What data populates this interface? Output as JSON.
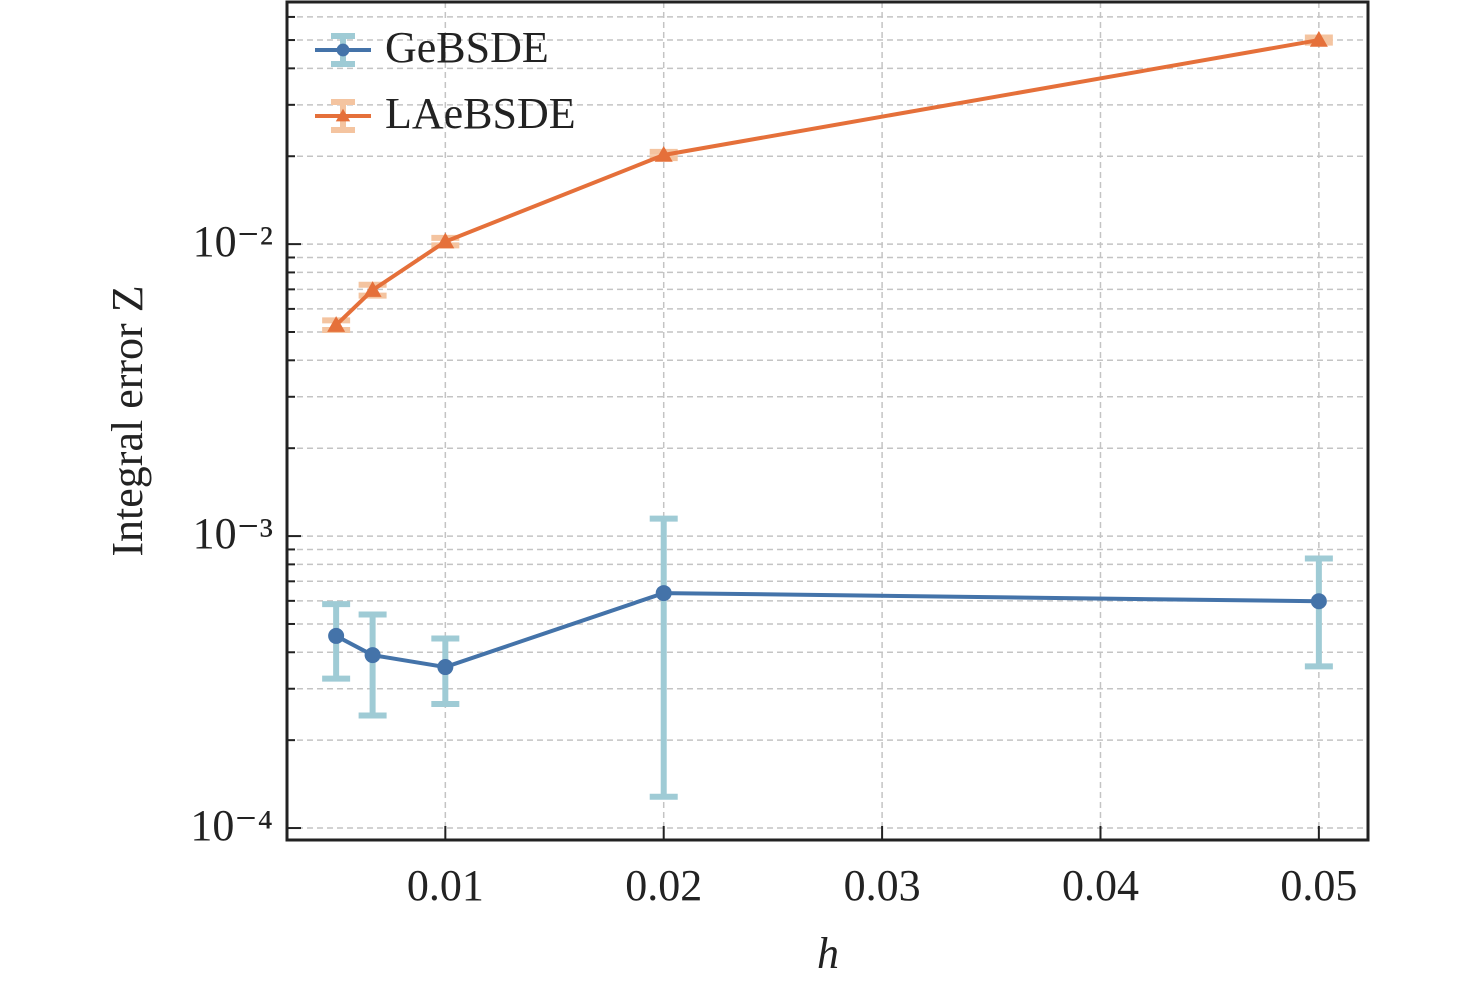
{
  "chart_data": {
    "type": "line",
    "xlabel": "h",
    "ylabel": "Integral error Z",
    "x": [
      0.005,
      0.00667,
      0.01,
      0.02,
      0.05
    ],
    "series": [
      {
        "name": "GeBSDE",
        "color": "#4473a9",
        "error_color": "#9fcbd5",
        "marker": "circle",
        "values": [
          0.000455,
          0.000391,
          0.000356,
          0.000638,
          0.000598
        ],
        "errors": [
          0.00013,
          0.000148,
          9e-05,
          0.00051,
          0.00024
        ]
      },
      {
        "name": "LAeBSDE",
        "color": "#e5703a",
        "error_color": "#f4c4a0",
        "marker": "triangle",
        "values": [
          0.00528,
          0.00696,
          0.0102,
          0.0202,
          0.05
        ],
        "errors": [
          0.0002,
          0.0003,
          0.0003,
          0.0005,
          0.001
        ]
      }
    ],
    "xlim": [
      0.00275,
      0.05225
    ],
    "xticks": [
      0.01,
      0.02,
      0.03,
      0.04,
      0.05
    ],
    "ylim": [
      9.1e-05,
      0.0675
    ],
    "yscale": "log",
    "yticks": [
      {
        "value": 0.0001,
        "label": "10⁻⁴"
      },
      {
        "value": 0.001,
        "label": "10⁻³"
      },
      {
        "value": 0.01,
        "label": "10⁻²"
      }
    ],
    "yminorticks": [
      0.0002,
      0.0003,
      0.0004,
      0.0005,
      0.0006,
      0.0007,
      0.0008,
      0.0009,
      0.002,
      0.003,
      0.004,
      0.005,
      0.006,
      0.007,
      0.008,
      0.009,
      0.02,
      0.03,
      0.04,
      0.05,
      0.06
    ],
    "grid": true,
    "legend": "upper left"
  }
}
